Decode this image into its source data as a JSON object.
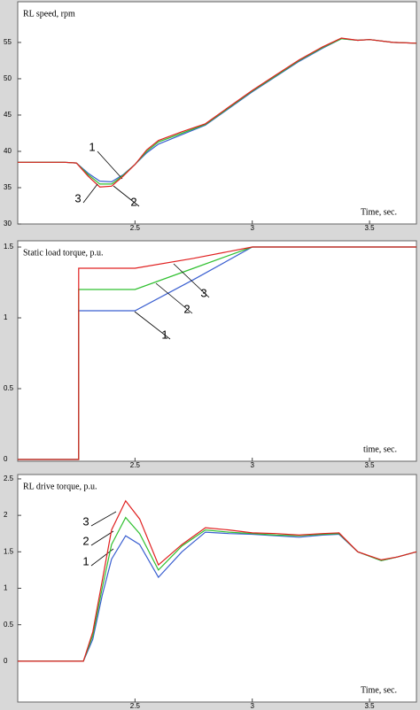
{
  "chart_data": [
    {
      "type": "line",
      "title": "RL speed, rpm",
      "x_label": "Time, sec.",
      "x": [
        2.0,
        2.1,
        2.2,
        2.25,
        2.3,
        2.35,
        2.4,
        2.45,
        2.5,
        2.55,
        2.6,
        2.7,
        2.8,
        2.9,
        3.0,
        3.1,
        3.2,
        3.3,
        3.38,
        3.45,
        3.5,
        3.6,
        3.7
      ],
      "series": [
        {
          "name": "1",
          "color": "#3a5fd0",
          "values": [
            38.5,
            38.5,
            38.5,
            38.4,
            37.0,
            35.9,
            35.8,
            36.8,
            38.2,
            39.8,
            41.0,
            42.3,
            43.6,
            45.9,
            48.2,
            50.3,
            52.4,
            54.2,
            55.5,
            55.3,
            55.4,
            55.0,
            54.9
          ]
        },
        {
          "name": "2",
          "color": "#30c030",
          "values": [
            38.5,
            38.5,
            38.5,
            38.4,
            36.8,
            35.5,
            35.5,
            36.7,
            38.2,
            40.0,
            41.3,
            42.5,
            43.7,
            46.0,
            48.3,
            50.4,
            52.5,
            54.3,
            55.5,
            55.3,
            55.4,
            55.0,
            54.9
          ]
        },
        {
          "name": "3",
          "color": "#e02020",
          "values": [
            38.5,
            38.5,
            38.5,
            38.4,
            36.6,
            35.1,
            35.2,
            36.6,
            38.2,
            40.2,
            41.5,
            42.7,
            43.8,
            46.1,
            48.4,
            50.5,
            52.6,
            54.4,
            55.6,
            55.3,
            55.4,
            55.0,
            54.9
          ]
        }
      ],
      "xlim": [
        2.0,
        3.7
      ],
      "xticks": [
        2.5,
        3,
        3.5
      ],
      "ylim": [
        30,
        60.6
      ],
      "yticks": [
        30,
        35,
        40,
        45,
        50,
        55
      ]
    },
    {
      "type": "line",
      "title": "Static load torque, p.u.",
      "x_label": "time, sec.",
      "x": [
        2.0,
        2.26,
        2.26,
        2.5,
        2.75,
        3.0,
        3.7
      ],
      "series": [
        {
          "name": "1",
          "color": "#3a5fd0",
          "values": [
            0,
            0,
            1.05,
            1.05,
            1.27,
            1.5,
            1.5
          ]
        },
        {
          "name": "2",
          "color": "#30c030",
          "values": [
            0,
            0,
            1.2,
            1.2,
            1.35,
            1.5,
            1.5
          ]
        },
        {
          "name": "3",
          "color": "#e02020",
          "values": [
            0,
            0,
            1.35,
            1.35,
            1.42,
            1.5,
            1.5
          ]
        }
      ],
      "xlim": [
        2.0,
        3.7
      ],
      "xticks": [
        2.5,
        3,
        3.5
      ],
      "ylim": [
        -0.0125,
        1.544
      ],
      "yticks": [
        0,
        0.5,
        1,
        1.5
      ]
    },
    {
      "type": "line",
      "title": "RL drive torque, p.u.",
      "x_label": "Time, sec.",
      "x": [
        2.0,
        2.28,
        2.32,
        2.36,
        2.4,
        2.46,
        2.52,
        2.6,
        2.7,
        2.8,
        2.9,
        3.0,
        3.1,
        3.2,
        3.3,
        3.37,
        3.45,
        3.55,
        3.62,
        3.7
      ],
      "series": [
        {
          "name": "1",
          "color": "#3a5fd0",
          "values": [
            0,
            0,
            0.3,
            0.9,
            1.4,
            1.72,
            1.6,
            1.15,
            1.5,
            1.77,
            1.75,
            1.74,
            1.72,
            1.7,
            1.73,
            1.74,
            1.5,
            1.38,
            1.43,
            1.5
          ]
        },
        {
          "name": "2",
          "color": "#30c030",
          "values": [
            0,
            0,
            0.35,
            1.0,
            1.6,
            1.97,
            1.75,
            1.25,
            1.58,
            1.8,
            1.77,
            1.75,
            1.73,
            1.72,
            1.74,
            1.75,
            1.5,
            1.38,
            1.43,
            1.5
          ]
        },
        {
          "name": "3",
          "color": "#e02020",
          "values": [
            0,
            0,
            0.4,
            1.1,
            1.8,
            2.2,
            1.95,
            1.32,
            1.6,
            1.83,
            1.8,
            1.76,
            1.75,
            1.73,
            1.75,
            1.76,
            1.5,
            1.39,
            1.43,
            1.5
          ]
        }
      ],
      "xlim": [
        2.0,
        3.7
      ],
      "xticks": [
        2.5,
        3,
        3.5
      ],
      "ylim": [
        -0.56,
        2.56
      ],
      "yticks": [
        0,
        0.5,
        1,
        1.5,
        2,
        2.5
      ]
    }
  ]
}
